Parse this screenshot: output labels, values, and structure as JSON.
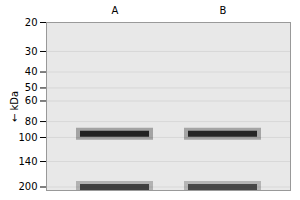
{
  "chart_data": {
    "type": "gel",
    "ylabel": "kDa",
    "categories": [
      "A",
      "B"
    ],
    "bands": [
      {
        "lane": "A",
        "kda": 200,
        "intensity": 0.75
      },
      {
        "lane": "B",
        "kda": 200,
        "intensity": 0.7
      },
      {
        "lane": "A",
        "kda": 95,
        "intensity": 0.95
      },
      {
        "lane": "B",
        "kda": 95,
        "intensity": 0.92
      }
    ],
    "color": "#1a1a1a",
    "log": "y",
    "ylim": [
      210,
      20
    ],
    "yticks": [
      200,
      140,
      100,
      80,
      60,
      50,
      40,
      30,
      20
    ],
    "grid": true
  }
}
